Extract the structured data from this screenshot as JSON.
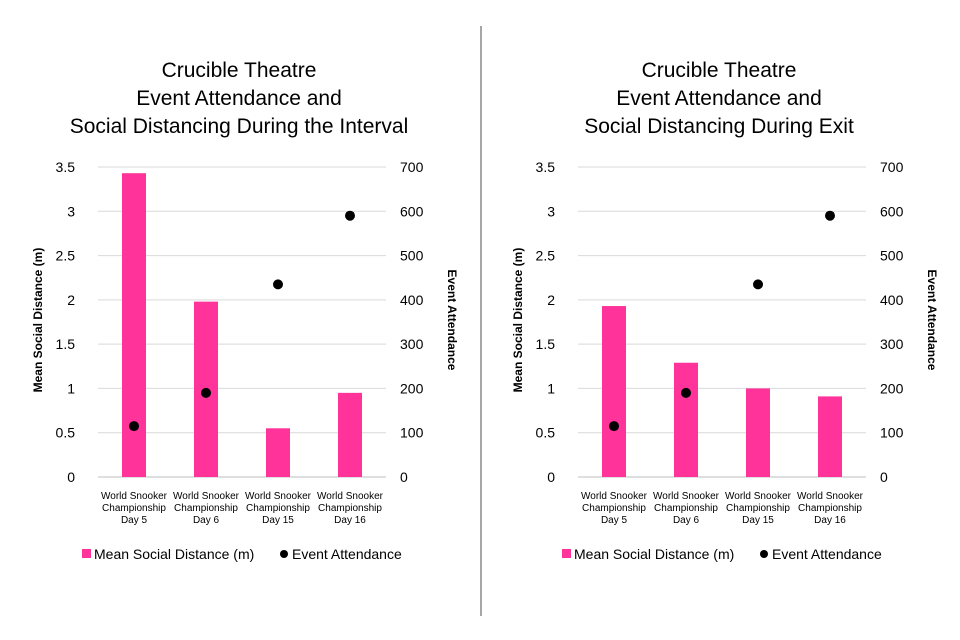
{
  "colors": {
    "bar": "#ff3399",
    "point": "#000000",
    "grid": "#d9d9d9"
  },
  "chart_data": [
    {
      "type": "bar",
      "title": [
        "Crucible Theatre",
        "Event Attendance and",
        "Social Distancing During the Interval"
      ],
      "categories": [
        [
          "World Snooker",
          "Championship",
          "Day 5"
        ],
        [
          "World Snooker",
          "Championship",
          "Day 6"
        ],
        [
          "World Snooker",
          "Championship",
          "Day 15"
        ],
        [
          "World Snooker",
          "Championship",
          "Day 16"
        ]
      ],
      "ylabel": "Mean Social Distance (m)",
      "y2label": "Event Attendance",
      "ylim": [
        0,
        3.5
      ],
      "y2lim": [
        0,
        700
      ],
      "yticks": [
        "0",
        "0.5",
        "1",
        "1.5",
        "2",
        "2.5",
        "3",
        "3.5"
      ],
      "y2ticks": [
        "0",
        "100",
        "200",
        "300",
        "400",
        "500",
        "600",
        "700"
      ],
      "series": [
        {
          "name": "Mean Social Distance (m)",
          "kind": "bar",
          "axis": "left",
          "values": [
            3.43,
            1.98,
            0.55,
            0.95
          ]
        },
        {
          "name": "Event Attendance",
          "kind": "scatter",
          "axis": "right",
          "values": [
            115,
            190,
            435,
            590
          ]
        }
      ],
      "legend": [
        "Mean Social Distance (m)",
        "Event Attendance"
      ],
      "grid": true,
      "legend_position": "bottom"
    },
    {
      "type": "bar",
      "title": [
        "Crucible Theatre",
        "Event Attendance and",
        "Social Distancing During Exit"
      ],
      "categories": [
        [
          "World Snooker",
          "Championship",
          "Day 5"
        ],
        [
          "World Snooker",
          "Championship",
          "Day 6"
        ],
        [
          "World Snooker",
          "Championship",
          "Day 15"
        ],
        [
          "World Snooker",
          "Championship",
          "Day 16"
        ]
      ],
      "ylabel": "Mean Social Distance (m)",
      "y2label": "Event Attendance",
      "ylim": [
        0,
        3.5
      ],
      "y2lim": [
        0,
        700
      ],
      "yticks": [
        "0",
        "0.5",
        "1",
        "1.5",
        "2",
        "2.5",
        "3",
        "3.5"
      ],
      "y2ticks": [
        "0",
        "100",
        "200",
        "300",
        "400",
        "500",
        "600",
        "700"
      ],
      "series": [
        {
          "name": "Mean Social Distance (m)",
          "kind": "bar",
          "axis": "left",
          "values": [
            1.93,
            1.29,
            1.0,
            0.91
          ]
        },
        {
          "name": "Event Attendance",
          "kind": "scatter",
          "axis": "right",
          "values": [
            115,
            190,
            435,
            590
          ]
        }
      ],
      "legend": [
        "Mean Social Distance (m)",
        "Event Attendance"
      ],
      "grid": true,
      "legend_position": "bottom"
    }
  ]
}
